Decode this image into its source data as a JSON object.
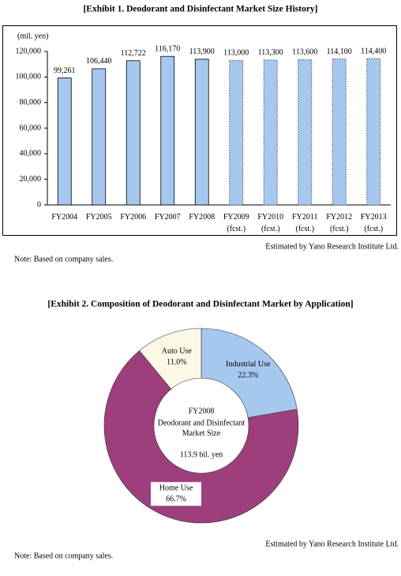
{
  "chart_data": [
    {
      "type": "bar",
      "title": "[Exhibit 1. Deodorant and Disinfectant Market Size History]",
      "y_label": "(mil. yen)",
      "categories": [
        "FY2004",
        "FY2005",
        "FY2006",
        "FY2007",
        "FY2008",
        "FY2009 (fcst.)",
        "FY2010 (fcst.)",
        "FY2011 (fcst.)",
        "FY2012 (fcst.)",
        "FY2013 (fcst.)"
      ],
      "values": [
        99261,
        106440,
        112722,
        116170,
        113900,
        113000,
        113300,
        113600,
        114100,
        114400
      ],
      "value_labels": [
        "99,261",
        "106,440",
        "112,722",
        "116,170",
        "113,900",
        "113,000",
        "113,300",
        "113,600",
        "114,100",
        "114,400"
      ],
      "color": "#a6c8ef",
      "border_styles": [
        "solid",
        "solid",
        "solid",
        "solid",
        "solid",
        "dotted",
        "dotted",
        "dotted",
        "dotted",
        "dotted"
      ],
      "ylim": [
        0,
        120000
      ],
      "yticks": [
        0,
        {
          "value": 20000,
          "label": "20,000"
        },
        {
          "value": 40000,
          "label": "40,000"
        },
        {
          "value": 60000,
          "label": "60,000"
        },
        {
          "value": 80000,
          "label": "80,000"
        },
        {
          "value": 100000,
          "label": "100,000"
        },
        {
          "value": 120000,
          "label": "120,000"
        }
      ],
      "grid": false,
      "source": "Estimated by Yano Research Institute Ltd.",
      "note": "Note: Based on company sales."
    },
    {
      "type": "donut",
      "title": "[Exhibit 2. Composition of Deodorant and Disinfectant Market by Application]",
      "categories": [
        "Industrial Use",
        "Home Use",
        "Auto Use"
      ],
      "values": [
        22.3,
        66.7,
        11.0
      ],
      "value_labels": [
        "22.3%",
        "66.7%",
        "11.0%"
      ],
      "colors": [
        "#a6c8ef",
        "#9e3f7d",
        "#fdf7e6"
      ],
      "center_text": [
        "FY2008",
        "Deodorant and Disinfectant",
        "Market Size",
        "113.9 bil. yen"
      ],
      "source": "Estimated by Yano Research Institute Ltd.",
      "note": "Note: Based on company sales."
    }
  ]
}
